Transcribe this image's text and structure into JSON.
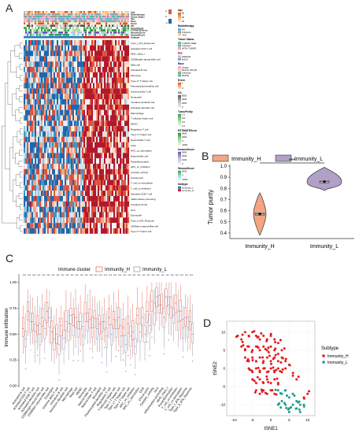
{
  "panels": {
    "a": "A",
    "b": "B",
    "c": "C",
    "d": "D"
  },
  "heatmap": {
    "annotation_rows": [
      "Age",
      "Radiotherapy",
      "Tumor Status",
      "Sex",
      "Race",
      "Event",
      "OS",
      "TumorPurity",
      "ESTIMATEScore",
      "ImmuneScore",
      "StromalScore",
      "Subtype"
    ],
    "rows": [
      "Type_I_IFN_Response",
      "Activated CD4 T cell",
      "MHC_class_I",
      "CD56bright natural killer cell",
      "Mast cell",
      "Activated B cell",
      "Monocyte",
      "Type 17 T helper cell",
      "Plasmacytoid dendritic cell",
      "Gamma delta T cell",
      "Neutrophil",
      "Immature dendritic cell",
      "Activated dendritic cell",
      "Macrophage",
      "T follicular helper cell",
      "MDSC",
      "Regulatory T cell",
      "Type 1 T helper cell",
      "Natural killer T cell",
      "CCR",
      "APC_co_stimulation",
      "Natural killer cell",
      "Parainflammation",
      "APC_co_inhibition",
      "Cytolytic_activity",
      "Check-point",
      "T_cell_co-stimulation",
      "T_cell_co-inhibition",
      "Activated CD8 T cell",
      "Inflammation-promoting",
      "Immature B cell",
      "HLA",
      "Eosinophil",
      "Type_II_IFN_Reponse",
      "CD56dim natural killer cell",
      "Type 2 T helper cell"
    ],
    "color_scale": {
      "max": "4",
      "mid": "0",
      "min": "-4"
    },
    "legend": [
      {
        "title": "Age",
        "kind": "gradient",
        "labels": [
          "80",
          "60",
          "20"
        ],
        "colors": [
          "#d95f0e",
          "#fdae6b",
          "#fff5eb"
        ]
      },
      {
        "title": "Radiotherapy",
        "kind": "cat",
        "items": [
          [
            "NO",
            "#6baed6"
          ],
          [
            "Unknown",
            "#9e9e9e"
          ],
          [
            "YES",
            "#fdd0a2"
          ]
        ]
      },
      {
        "title": "Tumor Status",
        "kind": "cat",
        "items": [
          [
            "TUMOR FREE",
            "#4dbfa8"
          ],
          [
            "Unknown",
            "#9e9e9e"
          ],
          [
            "WITH TUMOR",
            "#f4a6c8"
          ]
        ]
      },
      {
        "title": "Sex",
        "kind": "cat",
        "items": [
          [
            "FEMALE",
            "#f4a6c8"
          ],
          [
            "MALE",
            "#6baed6"
          ]
        ]
      },
      {
        "title": "Race",
        "kind": "cat",
        "items": [
          [
            "ASIAN",
            "#f4a6c8"
          ],
          [
            "BLACK OR AFRICAN AMERICAN",
            "#fdd0a2"
          ],
          [
            "Unknown",
            "#9e9e9e"
          ],
          [
            "WHITE",
            "#4dbfa8"
          ]
        ]
      },
      {
        "title": "Event",
        "kind": "gradient",
        "labels": [
          "1",
          "0"
        ],
        "colors": [
          "#e6550d",
          "#fee6ce"
        ]
      },
      {
        "title": "OS",
        "kind": "gradient",
        "labels": [
          "6000",
          "4000",
          "2000",
          "0"
        ],
        "colors": [
          "#525252",
          "#bdbdbd",
          "#f0f0f0"
        ]
      },
      {
        "title": "TumorPurity",
        "kind": "gradient",
        "labels": [
          "1.0",
          "0.8",
          "0.6",
          "0.4"
        ],
        "colors": [
          "#31a354",
          "#a1d99b",
          "#f7fcf5"
        ]
      },
      {
        "title": "ESTIMATEScore",
        "kind": "gradient",
        "labels": [
          "4000",
          "2000",
          "0",
          "-2000"
        ],
        "colors": [
          "#238b45",
          "#a1d99b",
          "#edf8e9"
        ]
      },
      {
        "title": "ImmuneScore",
        "kind": "gradient",
        "labels": [
          "3000",
          "2000",
          "1000",
          "0"
        ],
        "colors": [
          "#6a51a3",
          "#bcbddc",
          "#f2f0f7"
        ]
      },
      {
        "title": "StromalScore",
        "kind": "gradient",
        "labels": [
          "2000",
          "0",
          "-2000"
        ],
        "colors": [
          "#2ca25f",
          "#99d8c9",
          "#e5f5f9"
        ]
      },
      {
        "title": "Subtype",
        "kind": "cat",
        "items": [
          [
            "Immunity_L",
            "#2c7bb6"
          ],
          [
            "Immunity_H",
            "#d7191c"
          ]
        ]
      }
    ]
  },
  "violin": {
    "legend": [
      "Immunity_H",
      "Immunity_L"
    ],
    "ylabel": "Tumor purity",
    "yticks": [
      "1.0",
      "0.9",
      "0.8",
      "0.7",
      "0.6",
      "0.5",
      "0.4"
    ],
    "sig": "***",
    "colors": {
      "Immunity_H": "#f4a582",
      "Immunity_L": "#b2a0c8"
    }
  },
  "boxplot": {
    "legend_title": "Immune cluster",
    "legend": [
      "Immunity_H",
      "Immunity_L"
    ],
    "ylabel": "Immune infiltration",
    "yticks": [
      "1.00",
      "0.75",
      "0.50",
      "0.25",
      "0.00"
    ],
    "categories": [
      "Activated B cell",
      "Activated CD4 T cell",
      "Activated CD8 T cell",
      "Activated dendritic cell",
      "CD56bright natural killer cell",
      "CD56dim natural killer cell",
      "Eosinophil",
      "Gamma delta T cell",
      "Immature B cell",
      "Immature dendritic cell",
      "Macrophage",
      "Mast cell",
      "MDSC",
      "Monocyte",
      "Natural killer cell",
      "Natural killer T cell",
      "Neutrophil",
      "Plasmacytoid dendritic cell",
      "Regulatory T cell",
      "T follicular helper cell",
      "Type 1 T helper cell",
      "Type 17 T helper cell",
      "Type 2 T helper cell",
      "APC_co_inhibition",
      "APC_co_stimulation",
      "CCR",
      "Check-point",
      "Cytolytic_activity",
      "HLA",
      "Inflammation-promoting",
      "MHC_class_I",
      "Parainflammation",
      "T_cell_co-inhibition",
      "T_cell_co-stimulation",
      "Type_I_IFN_Reponse",
      "Type_II_IFN_Reponse"
    ]
  },
  "tsne": {
    "xlabel": "tSNE1",
    "ylabel": "tSNE2",
    "xticks": [
      "-10",
      "-5",
      "0",
      "5",
      "10"
    ],
    "yticks": [
      "10",
      "5",
      "0",
      "-5",
      "-10"
    ],
    "legend_title": "Subtype",
    "legend": [
      "Immunity_H",
      "Immunity_L"
    ],
    "colors": {
      "Immunity_H": "#e41a1c",
      "Immunity_L": "#1a9e8f"
    }
  },
  "chart_data": [
    {
      "type": "heatmap",
      "rows": 36,
      "annotation_tracks": 12,
      "clusters": [
        "Immunity_L",
        "Immunity_H"
      ],
      "scale": [
        -4,
        4
      ]
    },
    {
      "type": "violin",
      "categories": [
        "Immunity_H",
        "Immunity_L"
      ],
      "ylabel": "Tumor purity",
      "ylim": [
        0.35,
        1.0
      ],
      "median": [
        0.57,
        0.86
      ],
      "range": [
        [
          0.38,
          0.76
        ],
        [
          0.78,
          0.99
        ]
      ],
      "significance": "***"
    },
    {
      "type": "bar",
      "subtype": "boxplot",
      "ylabel": "Immune infiltration",
      "ylim": [
        0,
        1.05
      ],
      "series": [
        {
          "name": "Immunity_H",
          "values": [
            0.55,
            0.72,
            0.62,
            0.58,
            0.66,
            0.72,
            0.52,
            0.5,
            0.58,
            0.62,
            0.68,
            0.66,
            0.62,
            0.7,
            0.64,
            0.65,
            0.6,
            0.62,
            0.66,
            0.64,
            0.66,
            0.56,
            0.6,
            0.52,
            0.68,
            0.66,
            0.72,
            0.82,
            0.86,
            0.78,
            0.86,
            0.76,
            0.8,
            0.72,
            0.66,
            0.62
          ]
        },
        {
          "name": "Immunity_L",
          "values": [
            0.45,
            0.62,
            0.52,
            0.5,
            0.55,
            0.66,
            0.45,
            0.4,
            0.46,
            0.52,
            0.58,
            0.55,
            0.48,
            0.62,
            0.56,
            0.55,
            0.52,
            0.48,
            0.5,
            0.55,
            0.48,
            0.4,
            0.48,
            0.38,
            0.52,
            0.5,
            0.58,
            0.7,
            0.78,
            0.66,
            0.78,
            0.68,
            0.62,
            0.56,
            0.56,
            0.5
          ]
        }
      ]
    },
    {
      "type": "scatter",
      "xlabel": "tSNE1",
      "ylabel": "tSNE2",
      "xlim": [
        -12,
        12
      ],
      "ylim": [
        -13,
        13
      ],
      "series": [
        {
          "name": "Immunity_H",
          "points": [
            [
              -9,
              9
            ],
            [
              -8,
              8
            ],
            [
              -7,
              10
            ],
            [
              -6,
              9
            ],
            [
              -5,
              10
            ],
            [
              -4,
              9
            ],
            [
              -3,
              8
            ],
            [
              -2,
              9
            ],
            [
              -1,
              8
            ],
            [
              0,
              9
            ],
            [
              1,
              8
            ],
            [
              2,
              7
            ],
            [
              -8,
              6
            ],
            [
              -7,
              5
            ],
            [
              -6,
              6
            ],
            [
              -5,
              5
            ],
            [
              -4,
              6
            ],
            [
              -3,
              5
            ],
            [
              -2,
              6
            ],
            [
              -1,
              5
            ],
            [
              0,
              6
            ],
            [
              1,
              5
            ],
            [
              2,
              4
            ],
            [
              3,
              5
            ],
            [
              -7,
              3
            ],
            [
              -6,
              2
            ],
            [
              -5,
              3
            ],
            [
              -4,
              2
            ],
            [
              -3,
              3
            ],
            [
              -2,
              2
            ],
            [
              -1,
              3
            ],
            [
              0,
              2
            ],
            [
              1,
              3
            ],
            [
              2,
              2
            ],
            [
              3,
              3
            ],
            [
              4,
              2
            ],
            [
              -6,
              0
            ],
            [
              -5,
              -1
            ],
            [
              -4,
              0
            ],
            [
              -3,
              -1
            ],
            [
              -2,
              0
            ],
            [
              -1,
              -1
            ],
            [
              0,
              0
            ],
            [
              1,
              -1
            ],
            [
              2,
              0
            ],
            [
              3,
              -1
            ],
            [
              4,
              0
            ],
            [
              5,
              1
            ],
            [
              -5,
              -3
            ],
            [
              -4,
              -4
            ],
            [
              -3,
              -3
            ],
            [
              -2,
              -4
            ],
            [
              -1,
              -3
            ],
            [
              0,
              -4
            ],
            [
              1,
              -3
            ],
            [
              2,
              -4
            ],
            [
              6,
              -2
            ],
            [
              7,
              -3
            ],
            [
              -4,
              -6
            ],
            [
              -3,
              -7
            ],
            [
              -2,
              -6
            ],
            [
              -1,
              -7
            ],
            [
              0,
              -6
            ],
            [
              1,
              -7
            ],
            [
              9,
              -8
            ],
            [
              10,
              -7
            ]
          ]
        },
        {
          "name": "Immunity_L",
          "points": [
            [
              2,
              -6
            ],
            [
              3,
              -7
            ],
            [
              4,
              -6
            ],
            [
              5,
              -8
            ],
            [
              6,
              -7
            ],
            [
              7,
              -9
            ],
            [
              8,
              -10
            ],
            [
              3,
              -9
            ],
            [
              4,
              -10
            ],
            [
              5,
              -11
            ],
            [
              6,
              -10
            ],
            [
              7,
              -11
            ],
            [
              2,
              -10
            ],
            [
              9,
              -10
            ],
            [
              8,
              -12
            ],
            [
              5,
              -12
            ]
          ]
        }
      ]
    }
  ]
}
